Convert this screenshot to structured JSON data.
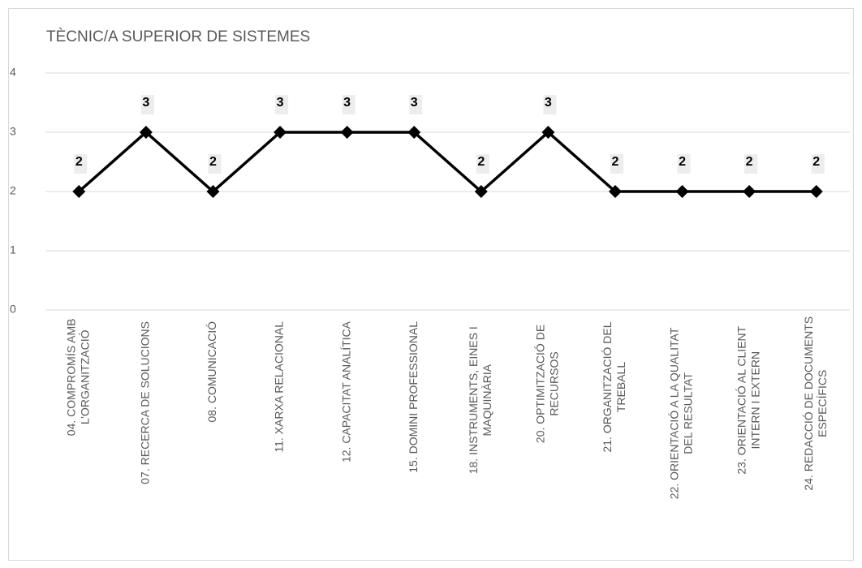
{
  "chart_data": {
    "type": "line",
    "title": "TÈCNIC/A SUPERIOR DE SISTEMES",
    "categories": [
      [
        "04. COMPROMÍS AMB",
        "L’ORGANITZACIÓ"
      ],
      [
        "07. RECERCA DE SOLUCIONS"
      ],
      [
        "08. COMUNICACIÓ"
      ],
      [
        "11. XARXA RELACIONAL"
      ],
      [
        "12. CAPACITAT ANALÍTICA"
      ],
      [
        "15. DOMINI PROFESSIONAL"
      ],
      [
        "18. INSTRUMENTS, EINES I",
        "MAQUINÀRIA"
      ],
      [
        "20. OPTIMITZACIÓ DE",
        "RECURSOS"
      ],
      [
        "21. ORGANITZACIÓ DEL",
        "TREBALL"
      ],
      [
        "22. ORIENTACIÓ A LA QUALITAT",
        "DEL RESULTAT"
      ],
      [
        "23. ORIENTACIÓ AL CLIENT",
        "INTERN I EXTERN"
      ],
      [
        "24. REDACCIÓ DE DOCUMENTS",
        "ESPECÍFICS"
      ]
    ],
    "values": [
      2,
      3,
      2,
      3,
      3,
      3,
      2,
      3,
      2,
      2,
      2,
      2
    ],
    "color": "#000000",
    "ylim": [
      0,
      4
    ],
    "yticks": [
      0,
      1,
      2,
      3,
      4
    ],
    "grid": true
  }
}
